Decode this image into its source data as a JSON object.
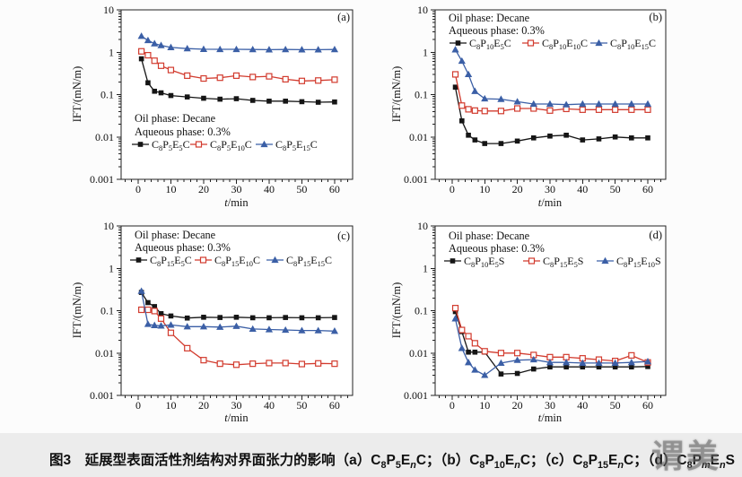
{
  "figure": {
    "caption": "图3　延展型表面活性剂结构对界面张力的影响（a）C_{8}P_{5}E_{n}C；（b）C_{8}P_{10}E_{n}C；（c）C_{8}P_{15}E_{n}C；（d）C_{8}P_{m}E_{n}S",
    "watermark_text": "谓美",
    "colors": {
      "black": "#151515",
      "red": "#d23b2e",
      "blue": "#3b5fa6",
      "axis": "#222222",
      "caption_band": "#ececec"
    }
  },
  "chart_data": [
    {
      "type": "line",
      "panel_id": "a",
      "panel_label": "(a)",
      "annotations": [
        "Oil phase: Decane",
        "Aqueous phase: 0.3%"
      ],
      "xlabel": "t/min",
      "ylabel": "IFT/(mN/m)",
      "xlim": [
        -5.2,
        65.5
      ],
      "ylog_range": [
        0.001,
        10
      ],
      "xticks": [
        0,
        10,
        20,
        30,
        40,
        50,
        60
      ],
      "ytick_labels": [
        "10",
        "1",
        "0.1",
        "0.01",
        "0.001"
      ],
      "grid": false,
      "legend_position": "lower-left",
      "x": [
        1,
        3,
        5,
        7,
        10,
        15,
        20,
        25,
        30,
        35,
        40,
        45,
        50,
        55,
        60
      ],
      "series": [
        {
          "name": "C_{8}P_{5}E_{5}C",
          "color": "#151515",
          "marker": "square-filled",
          "values": [
            0.7,
            0.19,
            0.12,
            0.11,
            0.095,
            0.088,
            0.082,
            0.078,
            0.08,
            0.073,
            0.07,
            0.07,
            0.068,
            0.066,
            0.067
          ]
        },
        {
          "name": "C_{8}P_{5}E_{10}C",
          "color": "#d23b2e",
          "marker": "square-open",
          "values": [
            1.05,
            0.85,
            0.63,
            0.48,
            0.38,
            0.28,
            0.24,
            0.25,
            0.28,
            0.26,
            0.27,
            0.23,
            0.21,
            0.215,
            0.225
          ]
        },
        {
          "name": "C_{8}P_{5}E_{15}C",
          "color": "#3b5fa6",
          "marker": "triangle-filled",
          "values": [
            2.4,
            1.9,
            1.6,
            1.45,
            1.3,
            1.22,
            1.18,
            1.17,
            1.17,
            1.16,
            1.15,
            1.16,
            1.15,
            1.15,
            1.16
          ]
        }
      ]
    },
    {
      "type": "line",
      "panel_id": "b",
      "panel_label": "(b)",
      "annotations": [
        "Oil phase: Decane",
        "Aqueous phase: 0.3%"
      ],
      "xlabel": "t/min",
      "ylabel": "IFT/(mN/m)",
      "xlim": [
        -5.2,
        65.5
      ],
      "ylog_range": [
        0.001,
        10
      ],
      "xticks": [
        0,
        10,
        20,
        30,
        40,
        50,
        60
      ],
      "ytick_labels": [
        "10",
        "1",
        "0.1",
        "0.01",
        "0.001"
      ],
      "grid": false,
      "legend_position": "upper-left",
      "x": [
        1,
        3,
        5,
        7,
        10,
        15,
        20,
        25,
        30,
        35,
        40,
        45,
        50,
        55,
        60
      ],
      "series": [
        {
          "name": "C_{8}P_{10}E_{5}C",
          "color": "#151515",
          "marker": "square-filled",
          "values": [
            0.15,
            0.024,
            0.011,
            0.0085,
            0.007,
            0.007,
            0.008,
            0.0095,
            0.0105,
            0.011,
            0.0085,
            0.009,
            0.01,
            0.0095,
            0.0095
          ]
        },
        {
          "name": "C_{8}P_{10}E_{10}C",
          "color": "#d23b2e",
          "marker": "square-open",
          "values": [
            0.3,
            0.055,
            0.045,
            0.042,
            0.041,
            0.041,
            0.047,
            0.047,
            0.042,
            0.046,
            0.044,
            0.044,
            0.044,
            0.044,
            0.044
          ]
        },
        {
          "name": "C_{8}P_{10}E_{15}C",
          "color": "#3b5fa6",
          "marker": "triangle-filled",
          "values": [
            1.15,
            0.62,
            0.3,
            0.12,
            0.08,
            0.078,
            0.068,
            0.06,
            0.06,
            0.058,
            0.06,
            0.06,
            0.06,
            0.06,
            0.06
          ]
        }
      ]
    },
    {
      "type": "line",
      "panel_id": "c",
      "panel_label": "(c)",
      "annotations": [
        "Oil phase: Decane",
        "Aqueous phase: 0.3%"
      ],
      "xlabel": "t/min",
      "ylabel": "IFT/(mN/m)",
      "xlim": [
        -5.2,
        65.5
      ],
      "ylog_range": [
        0.001,
        10
      ],
      "xticks": [
        0,
        10,
        20,
        30,
        40,
        50,
        60
      ],
      "ytick_labels": [
        "10",
        "1",
        "0.1",
        "0.01",
        "0.001"
      ],
      "grid": false,
      "legend_position": "upper-left",
      "x": [
        1,
        3,
        5,
        7,
        10,
        15,
        20,
        25,
        30,
        35,
        40,
        45,
        50,
        55,
        60
      ],
      "series": [
        {
          "name": "C_{8}P_{15}E_{5}C",
          "color": "#151515",
          "marker": "square-filled",
          "values": [
            0.27,
            0.155,
            0.125,
            0.085,
            0.075,
            0.067,
            0.07,
            0.069,
            0.07,
            0.068,
            0.068,
            0.069,
            0.068,
            0.068,
            0.069
          ]
        },
        {
          "name": "C_{8}P_{15}E_{10}C",
          "color": "#d23b2e",
          "marker": "square-open",
          "values": [
            0.105,
            0.105,
            0.098,
            0.065,
            0.03,
            0.013,
            0.0068,
            0.0056,
            0.0053,
            0.0056,
            0.0058,
            0.0058,
            0.0055,
            0.0057,
            0.0056
          ]
        },
        {
          "name": "C_{8}P_{15}E_{15}C",
          "color": "#3b5fa6",
          "marker": "triangle-filled",
          "values": [
            0.29,
            0.048,
            0.045,
            0.044,
            0.046,
            0.042,
            0.042,
            0.041,
            0.043,
            0.037,
            0.036,
            0.035,
            0.034,
            0.034,
            0.033
          ]
        }
      ]
    },
    {
      "type": "line",
      "panel_id": "d",
      "panel_label": "(d)",
      "annotations": [
        "Oil phase: Decane",
        "Aqueous phase: 0.3%"
      ],
      "xlabel": "t/min",
      "ylabel": "IFT/(mN/m)",
      "xlim": [
        -5.2,
        65.5
      ],
      "ylog_range": [
        0.001,
        10
      ],
      "xticks": [
        0,
        10,
        20,
        30,
        40,
        50,
        60
      ],
      "ytick_labels": [
        "10",
        "1",
        "0.1",
        "0.01",
        "0.001"
      ],
      "grid": false,
      "legend_position": "upper-left",
      "x": [
        1,
        3,
        5,
        7,
        10,
        15,
        20,
        25,
        30,
        35,
        40,
        45,
        50,
        55,
        60
      ],
      "series": [
        {
          "name": "C_{8}P_{10}E_{5}S",
          "color": "#151515",
          "marker": "square-filled",
          "values": [
            0.095,
            0.032,
            0.0105,
            0.0105,
            0.0105,
            0.0032,
            0.0033,
            0.0042,
            0.0047,
            0.0047,
            0.0047,
            0.0047,
            0.0047,
            0.0047,
            0.0048
          ]
        },
        {
          "name": "C_{8}P_{15}E_{5}S",
          "color": "#d23b2e",
          "marker": "square-open",
          "values": [
            0.115,
            0.035,
            0.025,
            0.017,
            0.011,
            0.01,
            0.01,
            0.009,
            0.008,
            0.008,
            0.0075,
            0.007,
            0.0065,
            0.0088,
            0.006
          ]
        },
        {
          "name": "C_{8}P_{15}E_{10}S",
          "color": "#3b5fa6",
          "marker": "triangle-filled",
          "values": [
            0.065,
            0.013,
            0.006,
            0.004,
            0.003,
            0.0058,
            0.0068,
            0.007,
            0.006,
            0.006,
            0.0058,
            0.0058,
            0.0058,
            0.006,
            0.0063
          ]
        }
      ]
    }
  ]
}
